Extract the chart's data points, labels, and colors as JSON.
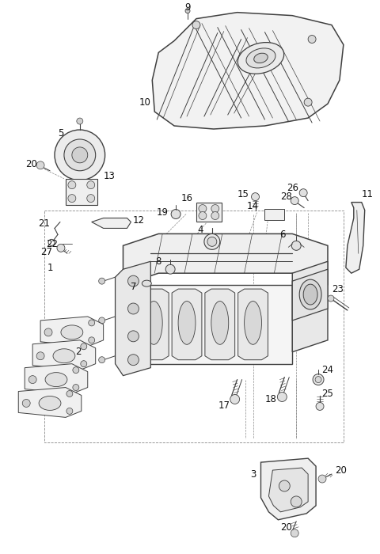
{
  "bg_color": "#ffffff",
  "line_color": "#404040",
  "label_color": "#111111",
  "font_size": 8.5,
  "fig_width": 4.8,
  "fig_height": 7.0,
  "dpi": 100
}
